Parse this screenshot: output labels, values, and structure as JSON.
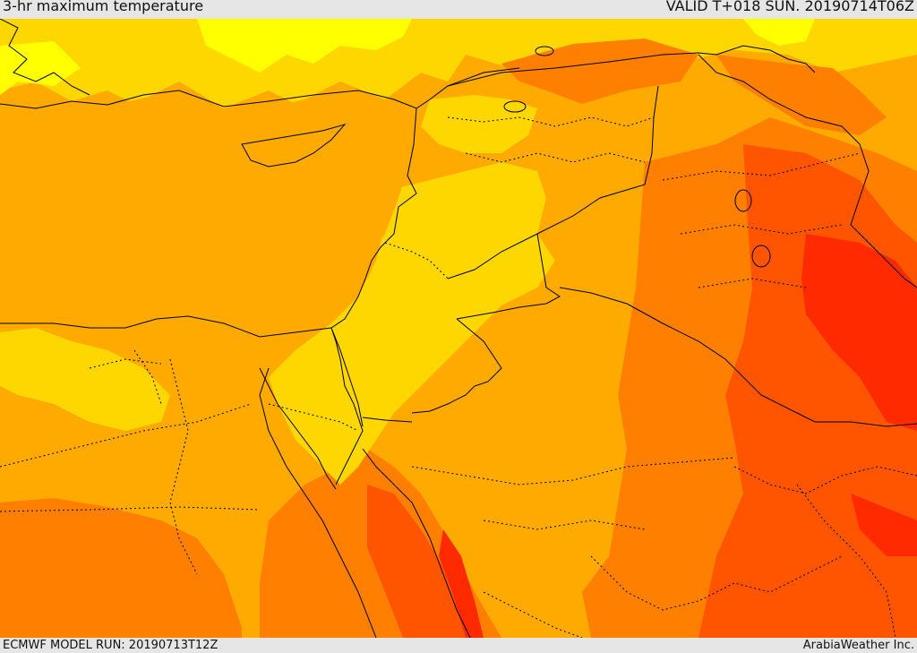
{
  "header": {
    "title": "3-hr maximum temperature",
    "valid": "VALID T+018 SUN. 20190714T06Z"
  },
  "footer": {
    "model_run": "ECMWF MODEL RUN: 20190713T12Z",
    "credit": "ArabiaWeather Inc."
  },
  "map": {
    "region": "Eastern Mediterranean and Middle East",
    "colors": {
      "light_yellow": "#ffff00",
      "yellow": "#ffd700",
      "light_orange": "#ffaa00",
      "orange": "#ff8000",
      "dark_orange": "#ff5500",
      "red": "#ff2a00",
      "borders": "#000000"
    }
  }
}
